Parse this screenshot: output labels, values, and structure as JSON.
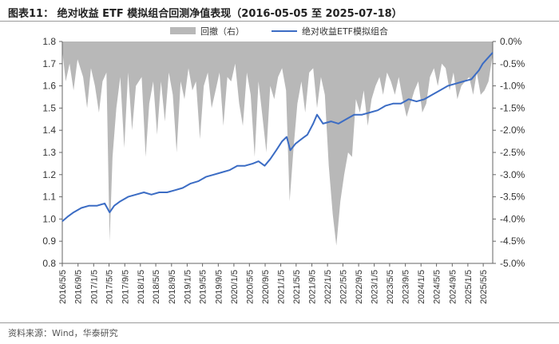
{
  "header": {
    "title": "图表11： 绝对收益 ETF 模拟组合回测净值表现（2016-05-05 至 2025-07-18）"
  },
  "footer": {
    "source": "资料来源：Wind，华泰研究"
  },
  "colors": {
    "nav_line": "#3b6cc4",
    "drawdown_area": "#b8b8b8",
    "axis": "#666666"
  },
  "chart_data": {
    "type": "line",
    "legend_position": "top",
    "legend": [
      {
        "key": "drawdown",
        "label": "回撤（右）"
      },
      {
        "key": "nav",
        "label": "绝对收益ETF模拟组合"
      }
    ],
    "left_axis": {
      "ylim": [
        0.8,
        1.8
      ],
      "ticks": [
        "0.8",
        "0.9",
        "1.0",
        "1.1",
        "1.2",
        "1.3",
        "1.4",
        "1.5",
        "1.6",
        "1.7",
        "1.8"
      ]
    },
    "right_axis": {
      "ylim": [
        -5.0,
        0.0
      ],
      "ticks": [
        "-5.0%",
        "-4.5%",
        "-4.0%",
        "-3.5%",
        "-3.0%",
        "-2.5%",
        "-2.0%",
        "-1.5%",
        "-1.0%",
        "-0.5%",
        "0.0%"
      ]
    },
    "x_ticks": [
      "2016/5/5",
      "2016/9/5",
      "2017/1/5",
      "2017/5/5",
      "2017/9/5",
      "2018/1/5",
      "2018/5/5",
      "2018/9/5",
      "2019/1/5",
      "2019/5/5",
      "2019/9/5",
      "2020/1/5",
      "2020/5/5",
      "2020/9/5",
      "2021/1/5",
      "2021/5/5",
      "2021/9/5",
      "2022/1/5",
      "2022/5/5",
      "2022/9/5",
      "2023/1/5",
      "2023/5/5",
      "2023/9/5",
      "2024/1/5",
      "2024/5/5",
      "2024/9/5",
      "2025/1/5",
      "2025/5/5"
    ],
    "x_range": [
      "2016-05-05",
      "2025-07-18"
    ],
    "series": [
      {
        "name": "绝对收益ETF模拟组合",
        "axis": "left",
        "x": [
          "2016-05-05",
          "2016-06-15",
          "2016-08-01",
          "2016-10-01",
          "2016-12-01",
          "2017-02-01",
          "2017-04-01",
          "2017-05-10",
          "2017-06-15",
          "2017-08-01",
          "2017-10-01",
          "2017-12-01",
          "2018-02-01",
          "2018-04-01",
          "2018-06-01",
          "2018-08-01",
          "2018-10-01",
          "2018-12-01",
          "2019-02-01",
          "2019-04-01",
          "2019-06-01",
          "2019-08-01",
          "2019-10-01",
          "2019-12-01",
          "2020-02-01",
          "2020-04-01",
          "2020-06-01",
          "2020-07-15",
          "2020-09-01",
          "2020-10-15",
          "2020-12-01",
          "2021-01-15",
          "2021-02-20",
          "2021-03-20",
          "2021-05-01",
          "2021-06-15",
          "2021-08-01",
          "2021-09-15",
          "2021-10-15",
          "2021-12-01",
          "2022-02-01",
          "2022-04-01",
          "2022-06-01",
          "2022-08-01",
          "2022-10-01",
          "2022-12-01",
          "2023-02-01",
          "2023-04-01",
          "2023-06-01",
          "2023-08-01",
          "2023-10-01",
          "2023-12-01",
          "2024-02-01",
          "2024-04-01",
          "2024-06-01",
          "2024-08-01",
          "2024-10-01",
          "2024-12-01",
          "2025-02-01",
          "2025-04-01",
          "2025-05-01",
          "2025-06-01",
          "2025-07-18"
        ],
        "values": [
          0.99,
          1.01,
          1.03,
          1.05,
          1.06,
          1.06,
          1.07,
          1.03,
          1.06,
          1.08,
          1.1,
          1.11,
          1.12,
          1.11,
          1.12,
          1.12,
          1.13,
          1.14,
          1.16,
          1.17,
          1.19,
          1.2,
          1.21,
          1.22,
          1.24,
          1.24,
          1.25,
          1.26,
          1.24,
          1.27,
          1.31,
          1.35,
          1.37,
          1.31,
          1.34,
          1.36,
          1.38,
          1.43,
          1.47,
          1.43,
          1.44,
          1.43,
          1.45,
          1.47,
          1.47,
          1.48,
          1.49,
          1.51,
          1.52,
          1.52,
          1.54,
          1.53,
          1.54,
          1.56,
          1.58,
          1.6,
          1.61,
          1.62,
          1.63,
          1.67,
          1.7,
          1.72,
          1.75
        ]
      },
      {
        "name": "回撤（右）",
        "axis": "right",
        "x": [
          "2016-05-05",
          "2016-06-01",
          "2016-07-01",
          "2016-08-01",
          "2016-09-01",
          "2016-10-15",
          "2016-11-15",
          "2016-12-15",
          "2017-01-15",
          "2017-02-15",
          "2017-03-15",
          "2017-04-15",
          "2017-05-10",
          "2017-06-01",
          "2017-07-01",
          "2017-08-01",
          "2017-09-01",
          "2017-10-01",
          "2017-11-01",
          "2017-12-01",
          "2018-01-15",
          "2018-02-15",
          "2018-03-15",
          "2018-04-15",
          "2018-05-15",
          "2018-06-15",
          "2018-07-15",
          "2018-08-15",
          "2018-09-15",
          "2018-10-15",
          "2018-11-15",
          "2018-12-15",
          "2019-01-15",
          "2019-02-15",
          "2019-03-15",
          "2019-04-15",
          "2019-05-15",
          "2019-06-15",
          "2019-07-15",
          "2019-08-15",
          "2019-09-15",
          "2019-10-15",
          "2019-11-15",
          "2019-12-15",
          "2020-01-15",
          "2020-02-15",
          "2020-03-15",
          "2020-04-15",
          "2020-05-15",
          "2020-06-15",
          "2020-07-15",
          "2020-08-15",
          "2020-09-15",
          "2020-10-15",
          "2020-11-15",
          "2020-12-15",
          "2021-01-15",
          "2021-02-15",
          "2021-03-15",
          "2021-04-15",
          "2021-05-15",
          "2021-06-15",
          "2021-07-15",
          "2021-08-15",
          "2021-09-15",
          "2021-10-15",
          "2021-11-15",
          "2021-12-15",
          "2022-01-15",
          "2022-02-15",
          "2022-03-15",
          "2022-04-15",
          "2022-05-15",
          "2022-06-15",
          "2022-07-15",
          "2022-08-15",
          "2022-09-15",
          "2022-10-15",
          "2022-11-15",
          "2022-12-15",
          "2023-01-15",
          "2023-02-15",
          "2023-03-15",
          "2023-04-15",
          "2023-05-15",
          "2023-06-15",
          "2023-07-15",
          "2023-08-15",
          "2023-09-15",
          "2023-10-15",
          "2023-11-15",
          "2023-12-15",
          "2024-01-15",
          "2024-02-15",
          "2024-03-15",
          "2024-04-15",
          "2024-05-15",
          "2024-06-15",
          "2024-07-15",
          "2024-08-15",
          "2024-09-15",
          "2024-10-15",
          "2024-11-15",
          "2024-12-15",
          "2025-01-15",
          "2025-02-15",
          "2025-03-15",
          "2025-04-15",
          "2025-05-15",
          "2025-06-15",
          "2025-07-18"
        ],
        "values": [
          -0.2,
          -0.9,
          -0.5,
          -1.1,
          -0.4,
          -0.8,
          -1.5,
          -0.6,
          -1.0,
          -1.6,
          -0.9,
          -0.7,
          -4.5,
          -2.6,
          -1.5,
          -0.8,
          -2.4,
          -0.7,
          -2.0,
          -1.0,
          -0.8,
          -2.6,
          -1.4,
          -0.9,
          -2.1,
          -0.9,
          -1.8,
          -0.7,
          -1.2,
          -2.5,
          -0.9,
          -1.3,
          -0.6,
          -1.1,
          -0.9,
          -2.2,
          -1.0,
          -0.7,
          -1.5,
          -1.1,
          -0.7,
          -1.9,
          -0.8,
          -0.9,
          -0.5,
          -1.4,
          -1.9,
          -0.7,
          -1.2,
          -2.6,
          -0.9,
          -1.7,
          -2.5,
          -1.0,
          -1.3,
          -0.8,
          -0.6,
          -1.1,
          -3.6,
          -2.4,
          -1.4,
          -0.9,
          -1.6,
          -0.7,
          -0.6,
          -1.5,
          -0.8,
          -1.2,
          -2.8,
          -3.9,
          -4.6,
          -3.6,
          -3.0,
          -2.5,
          -2.6,
          -1.3,
          -1.6,
          -1.1,
          -1.9,
          -1.3,
          -1.0,
          -0.8,
          -1.2,
          -0.7,
          -0.9,
          -1.2,
          -0.8,
          -1.3,
          -1.7,
          -1.4,
          -1.1,
          -0.9,
          -1.6,
          -1.4,
          -0.8,
          -0.6,
          -1.0,
          -0.5,
          -0.6,
          -1.1,
          -0.7,
          -1.3,
          -1.0,
          -0.9,
          -0.8,
          -1.2,
          -0.7,
          -1.2,
          -1.1,
          -0.9,
          -0.3
        ]
      }
    ]
  }
}
